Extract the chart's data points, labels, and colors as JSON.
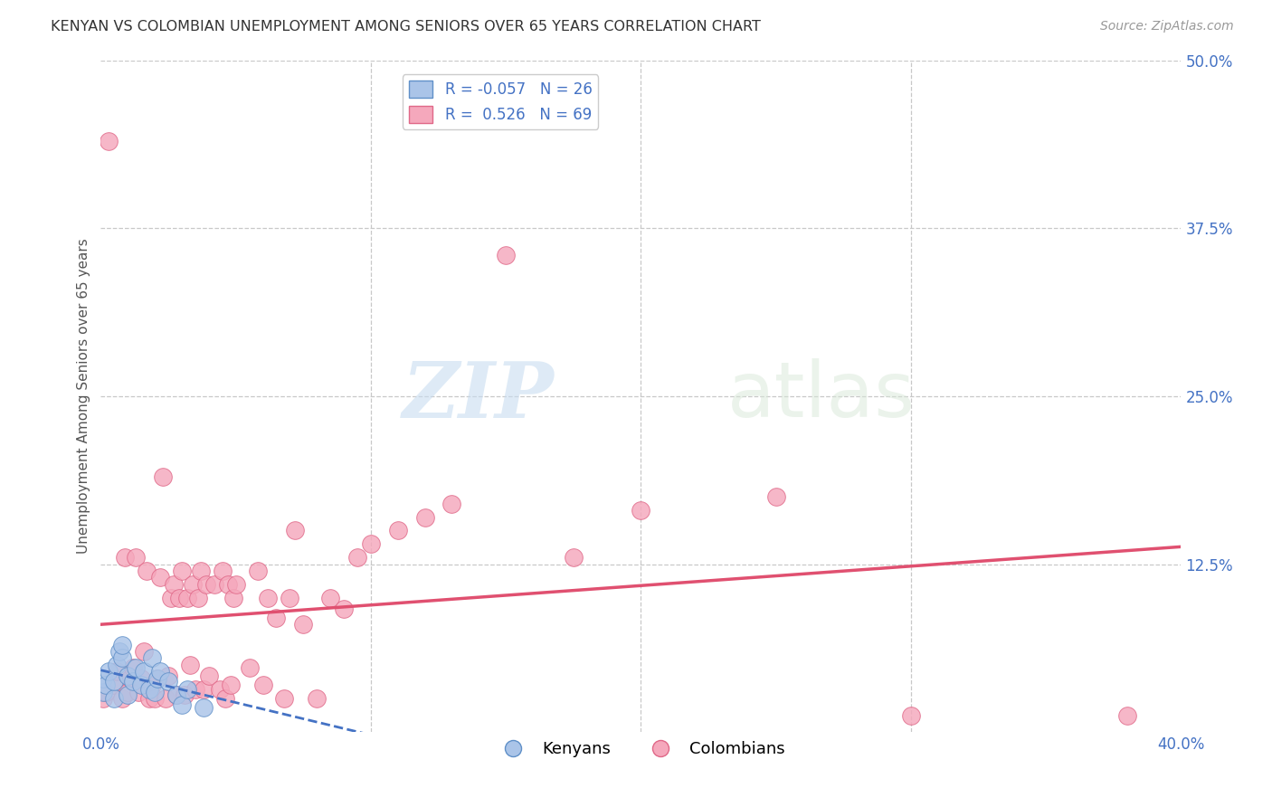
{
  "title": "KENYAN VS COLOMBIAN UNEMPLOYMENT AMONG SENIORS OVER 65 YEARS CORRELATION CHART",
  "source": "Source: ZipAtlas.com",
  "ylabel": "Unemployment Among Seniors over 65 years",
  "xlim": [
    0.0,
    0.4
  ],
  "ylim": [
    0.0,
    0.5
  ],
  "xticks": [
    0.0,
    0.1,
    0.2,
    0.3,
    0.4
  ],
  "yticks": [
    0.0,
    0.125,
    0.25,
    0.375,
    0.5
  ],
  "xtick_labels": [
    "0.0%",
    "",
    "",
    "",
    "40.0%"
  ],
  "ytick_labels": [
    "",
    "12.5%",
    "25.0%",
    "37.5%",
    "50.0%"
  ],
  "background_color": "#ffffff",
  "plot_bg_color": "#ffffff",
  "grid_color": "#c8c8c8",
  "kenyan_color": "#aac4e8",
  "colombian_color": "#f5a8bc",
  "kenyan_edge_color": "#6090c8",
  "colombian_edge_color": "#e06888",
  "kenyan_line_color": "#4472c4",
  "colombian_line_color": "#e05070",
  "kenyan_R": -0.057,
  "kenyan_N": 26,
  "colombian_R": 0.526,
  "colombian_N": 69,
  "watermark_zip": "ZIP",
  "watermark_atlas": "atlas",
  "legend_label_kenyan": "Kenyans",
  "legend_label_colombian": "Colombians",
  "kenyan_x": [
    0.001,
    0.001,
    0.002,
    0.003,
    0.005,
    0.005,
    0.006,
    0.007,
    0.008,
    0.008,
    0.01,
    0.01,
    0.012,
    0.013,
    0.015,
    0.016,
    0.018,
    0.019,
    0.02,
    0.021,
    0.022,
    0.025,
    0.028,
    0.03,
    0.032,
    0.038
  ],
  "kenyan_y": [
    0.03,
    0.04,
    0.035,
    0.045,
    0.025,
    0.038,
    0.05,
    0.06,
    0.055,
    0.065,
    0.028,
    0.042,
    0.038,
    0.048,
    0.035,
    0.045,
    0.032,
    0.055,
    0.03,
    0.04,
    0.045,
    0.038,
    0.028,
    0.02,
    0.032,
    0.018
  ],
  "colombian_x": [
    0.001,
    0.002,
    0.003,
    0.005,
    0.006,
    0.008,
    0.009,
    0.01,
    0.011,
    0.012,
    0.013,
    0.014,
    0.015,
    0.016,
    0.017,
    0.018,
    0.019,
    0.02,
    0.021,
    0.022,
    0.023,
    0.024,
    0.025,
    0.026,
    0.027,
    0.028,
    0.029,
    0.03,
    0.031,
    0.032,
    0.033,
    0.034,
    0.035,
    0.036,
    0.037,
    0.038,
    0.039,
    0.04,
    0.042,
    0.044,
    0.045,
    0.046,
    0.047,
    0.048,
    0.049,
    0.05,
    0.055,
    0.058,
    0.06,
    0.062,
    0.065,
    0.068,
    0.07,
    0.072,
    0.075,
    0.08,
    0.085,
    0.09,
    0.095,
    0.1,
    0.11,
    0.12,
    0.13,
    0.15,
    0.175,
    0.2,
    0.25,
    0.3,
    0.38
  ],
  "colombian_y": [
    0.025,
    0.03,
    0.44,
    0.035,
    0.045,
    0.025,
    0.13,
    0.03,
    0.04,
    0.048,
    0.13,
    0.03,
    0.04,
    0.06,
    0.12,
    0.025,
    0.035,
    0.025,
    0.04,
    0.115,
    0.19,
    0.025,
    0.042,
    0.1,
    0.11,
    0.028,
    0.1,
    0.12,
    0.028,
    0.1,
    0.05,
    0.11,
    0.032,
    0.1,
    0.12,
    0.032,
    0.11,
    0.042,
    0.11,
    0.032,
    0.12,
    0.025,
    0.11,
    0.035,
    0.1,
    0.11,
    0.048,
    0.12,
    0.035,
    0.1,
    0.085,
    0.025,
    0.1,
    0.15,
    0.08,
    0.025,
    0.1,
    0.092,
    0.13,
    0.14,
    0.15,
    0.16,
    0.17,
    0.355,
    0.13,
    0.165,
    0.175,
    0.012,
    0.012
  ]
}
